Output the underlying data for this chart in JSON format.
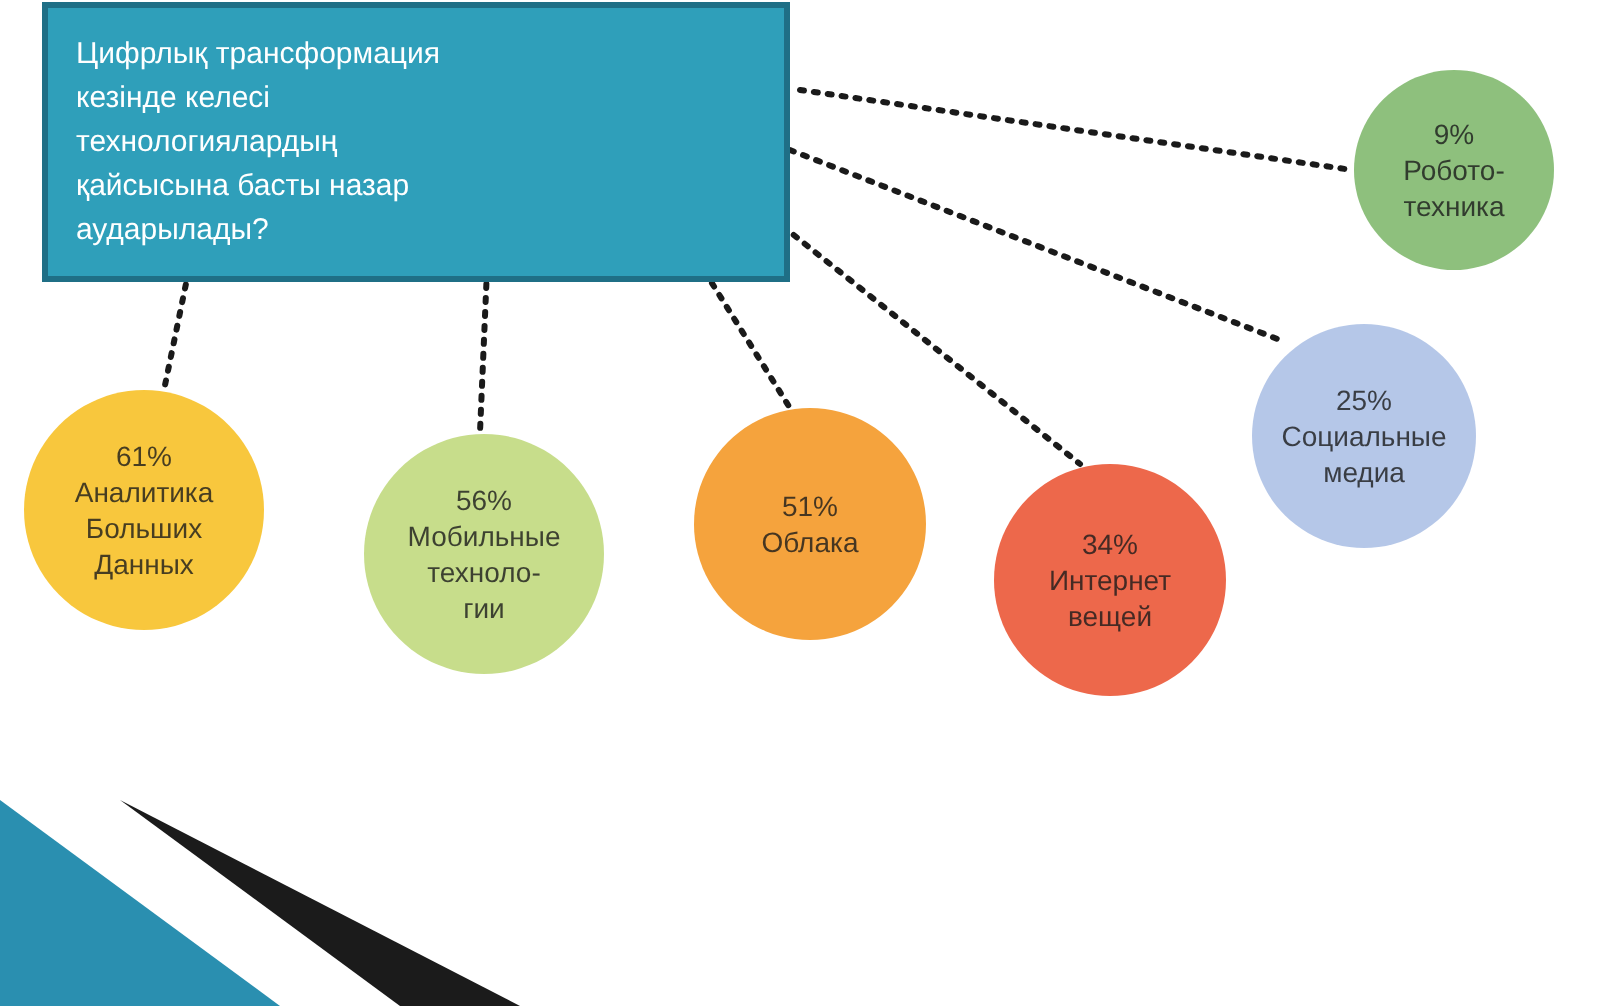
{
  "chart_data": {
    "type": "other",
    "title": "Цифрлық трансформация кезінде келесі технологиялардың қайсысына басты назар аударылады?",
    "categories": [
      "Аналитика\nБольших\nДанных",
      "Мобильные\nтехноло-\nгии",
      "Облака",
      "Интернет\nвещей",
      "Социальные\nмедиа",
      "Робото-\nтехника"
    ],
    "values": [
      61,
      56,
      51,
      34,
      25,
      9
    ],
    "value_labels": [
      "61%",
      "56%",
      "51%",
      "34%",
      "25%",
      "9%"
    ],
    "colors": [
      "#f6b90c",
      "#b9d56e",
      "#f28c0c",
      "#e8421e",
      "#a3b9e2",
      "#72b05c"
    ]
  }
}
